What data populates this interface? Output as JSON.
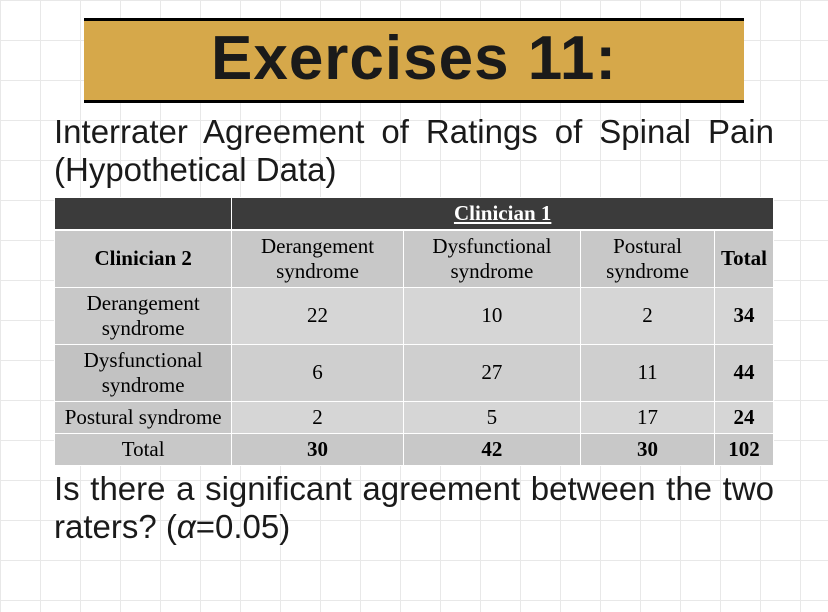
{
  "title": "Exercises 11:",
  "subtitle_line1": "Interrater Agreement of Ratings of Spinal Pain",
  "subtitle_line2": "(Hypothetical Data)",
  "table": {
    "top_header_blank": "",
    "top_header_span": "Clinician 1",
    "corner": "Clinician 2",
    "columns": [
      "Derangement syndrome",
      "Dysfunctional syndrome",
      "Postural syndrome",
      "Total"
    ],
    "rows": [
      {
        "label": "Derangement syndrome",
        "cells": [
          "22",
          "10",
          "2",
          "34"
        ]
      },
      {
        "label": "Dysfunctional syndrome",
        "cells": [
          "6",
          "27",
          "11",
          "44"
        ]
      },
      {
        "label": "Postural syndrome",
        "cells": [
          "2",
          "5",
          "17",
          "24"
        ]
      }
    ],
    "total_row": {
      "label": "Total",
      "cells": [
        "30",
        "42",
        "30",
        "102"
      ]
    }
  },
  "question_line1": "Is there a significant agreement between the two",
  "question_line2_a": "raters? (",
  "question_alpha": "α",
  "question_line2_b": "=0.05)",
  "colors": {
    "band": "#d6a84a",
    "dark": "#3b3b3b",
    "cell": "#d6d6d6",
    "cell_alt": "#cfcfcf",
    "head_cell": "#c8c8c8"
  }
}
